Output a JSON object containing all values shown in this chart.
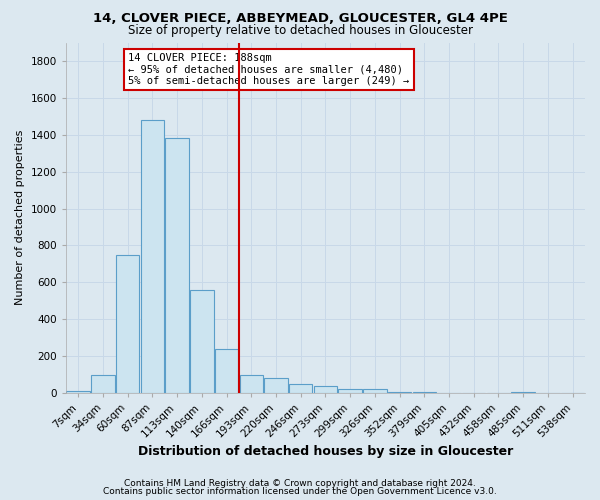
{
  "title1": "14, CLOVER PIECE, ABBEYMEAD, GLOUCESTER, GL4 4PE",
  "title2": "Size of property relative to detached houses in Gloucester",
  "xlabel": "Distribution of detached houses by size in Gloucester",
  "ylabel": "Number of detached properties",
  "footer1": "Contains HM Land Registry data © Crown copyright and database right 2024.",
  "footer2": "Contains public sector information licensed under the Open Government Licence v3.0.",
  "annotation_title": "14 CLOVER PIECE: 188sqm",
  "annotation_line1": "← 95% of detached houses are smaller (4,480)",
  "annotation_line2": "5% of semi-detached houses are larger (249) →",
  "bar_labels": [
    "7sqm",
    "34sqm",
    "60sqm",
    "87sqm",
    "113sqm",
    "140sqm",
    "166sqm",
    "193sqm",
    "220sqm",
    "246sqm",
    "273sqm",
    "299sqm",
    "326sqm",
    "352sqm",
    "379sqm",
    "405sqm",
    "432sqm",
    "458sqm",
    "485sqm",
    "511sqm",
    "538sqm"
  ],
  "bar_values": [
    10,
    100,
    750,
    1480,
    1380,
    560,
    240,
    100,
    80,
    50,
    40,
    20,
    20,
    5,
    5,
    3,
    0,
    0,
    5,
    0,
    0
  ],
  "bar_color": "#cce4f0",
  "bar_edge_color": "#5b9ec9",
  "vline_color": "#cc0000",
  "vline_x": 6.5,
  "ylim": [
    0,
    1900
  ],
  "yticks": [
    0,
    200,
    400,
    600,
    800,
    1000,
    1200,
    1400,
    1600,
    1800
  ],
  "grid_color": "#c8d8e8",
  "bg_color": "#dce8f0",
  "plot_bg_color": "#dce8f0",
  "annotation_box_color": "#ffffff",
  "annotation_box_edge": "#cc0000",
  "title1_fontsize": 9.5,
  "title2_fontsize": 8.5,
  "ylabel_fontsize": 8,
  "xlabel_fontsize": 9,
  "tick_fontsize": 7.5,
  "footer_fontsize": 6.5,
  "ann_fontsize": 7.5
}
